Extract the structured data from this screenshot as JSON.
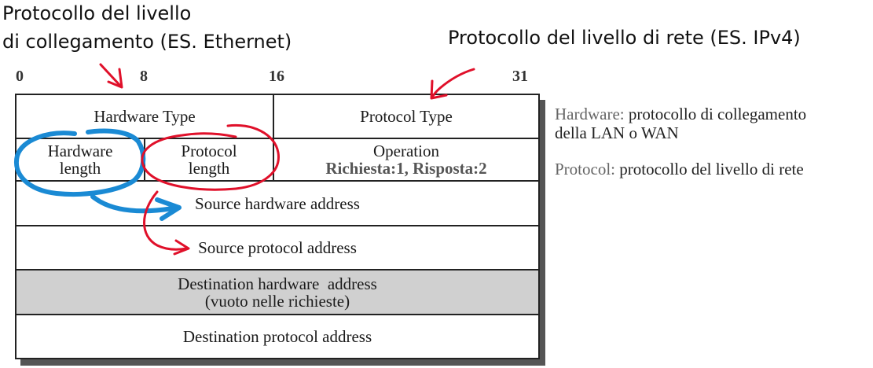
{
  "annotations": {
    "link_layer_line1": "Protocollo del livello",
    "link_layer_line2": "di collegamento (ES. Ethernet)",
    "network_layer": "Protocollo del livello di rete (ES. IPv4)"
  },
  "bit_positions": [
    "0",
    "8",
    "16",
    "31"
  ],
  "fields": {
    "hardware_type": "Hardware Type",
    "protocol_type": "Protocol Type",
    "hardware_length_line1": "Hardware",
    "hardware_length_line2": "length",
    "protocol_length_line1": "Protocol",
    "protocol_length_line2": "length",
    "operation_line1": "Operation",
    "operation_line2": "Richiesta:1, Risposta:2",
    "source_hardware_address": "Source hardware address",
    "source_protocol_address": "Source protocol address",
    "destination_hardware_address_line1": "Destination hardware  address",
    "destination_hardware_address_line2": "(vuoto nelle richieste)",
    "destination_protocol_address": "Destination protocol address"
  },
  "notes": {
    "hardware_label": "Hardware:",
    "hardware_text_line1": "protocollo di collegamento",
    "hardware_text_line2": "della LAN o WAN",
    "protocol_label": "Protocol:",
    "protocol_text": "protocollo del livello di rete"
  },
  "colors": {
    "blue_markup": "#1a8ad4",
    "red_markup": "#e0102a",
    "shaded_row": "#d0d0d0"
  }
}
